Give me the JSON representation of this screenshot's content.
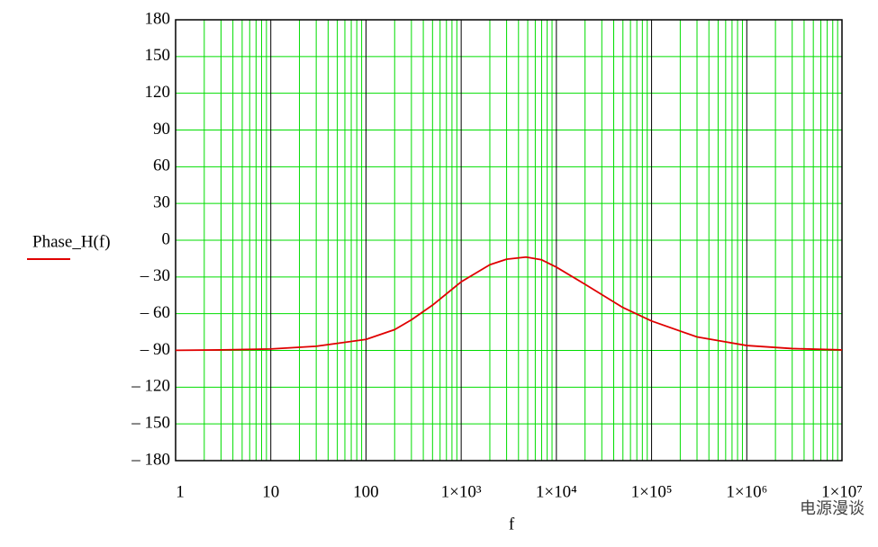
{
  "chart_data": {
    "type": "line",
    "x_label": "f",
    "x": [
      1,
      3,
      10,
      30,
      100,
      200,
      300,
      500,
      1000,
      2000,
      3000,
      4800,
      7000,
      10000,
      20000,
      50000,
      100000,
      300000,
      1000000,
      3000000,
      10000000
    ],
    "series": [
      {
        "name": "Phase_H(f)",
        "color": "#e00000",
        "values": [
          -89.9,
          -89.6,
          -88.8,
          -86.6,
          -81,
          -73,
          -65,
          -53,
          -34,
          -20,
          -15.5,
          -13.8,
          -16,
          -22,
          -36,
          -55,
          -66,
          -79,
          -86,
          -88.5,
          -89.6
        ]
      }
    ],
    "xscale": "log",
    "xlim": [
      1,
      10000000
    ],
    "xticks": [
      1,
      10,
      100,
      {
        "value": 1000,
        "label": "1×10³"
      },
      {
        "value": 10000,
        "label": "1×10⁴"
      },
      {
        "value": 100000,
        "label": "1×10⁵"
      },
      {
        "value": 1000000,
        "label": "1×10⁶"
      },
      {
        "value": 10000000,
        "label": "1×10⁷"
      }
    ],
    "ylim": [
      -180,
      180
    ],
    "yticks": [
      180,
      150,
      120,
      90,
      60,
      30,
      0,
      {
        "value": -30,
        "label": "– 30"
      },
      {
        "value": -60,
        "label": "– 60"
      },
      {
        "value": -90,
        "label": "– 90"
      },
      {
        "value": -120,
        "label": "– 120"
      },
      {
        "value": -150,
        "label": "– 150"
      },
      {
        "value": -180,
        "label": "– 180"
      }
    ],
    "grid": true,
    "grid_color": "#00dd00",
    "major_grid_color": "#000000",
    "watermark": "电源漫谈"
  }
}
